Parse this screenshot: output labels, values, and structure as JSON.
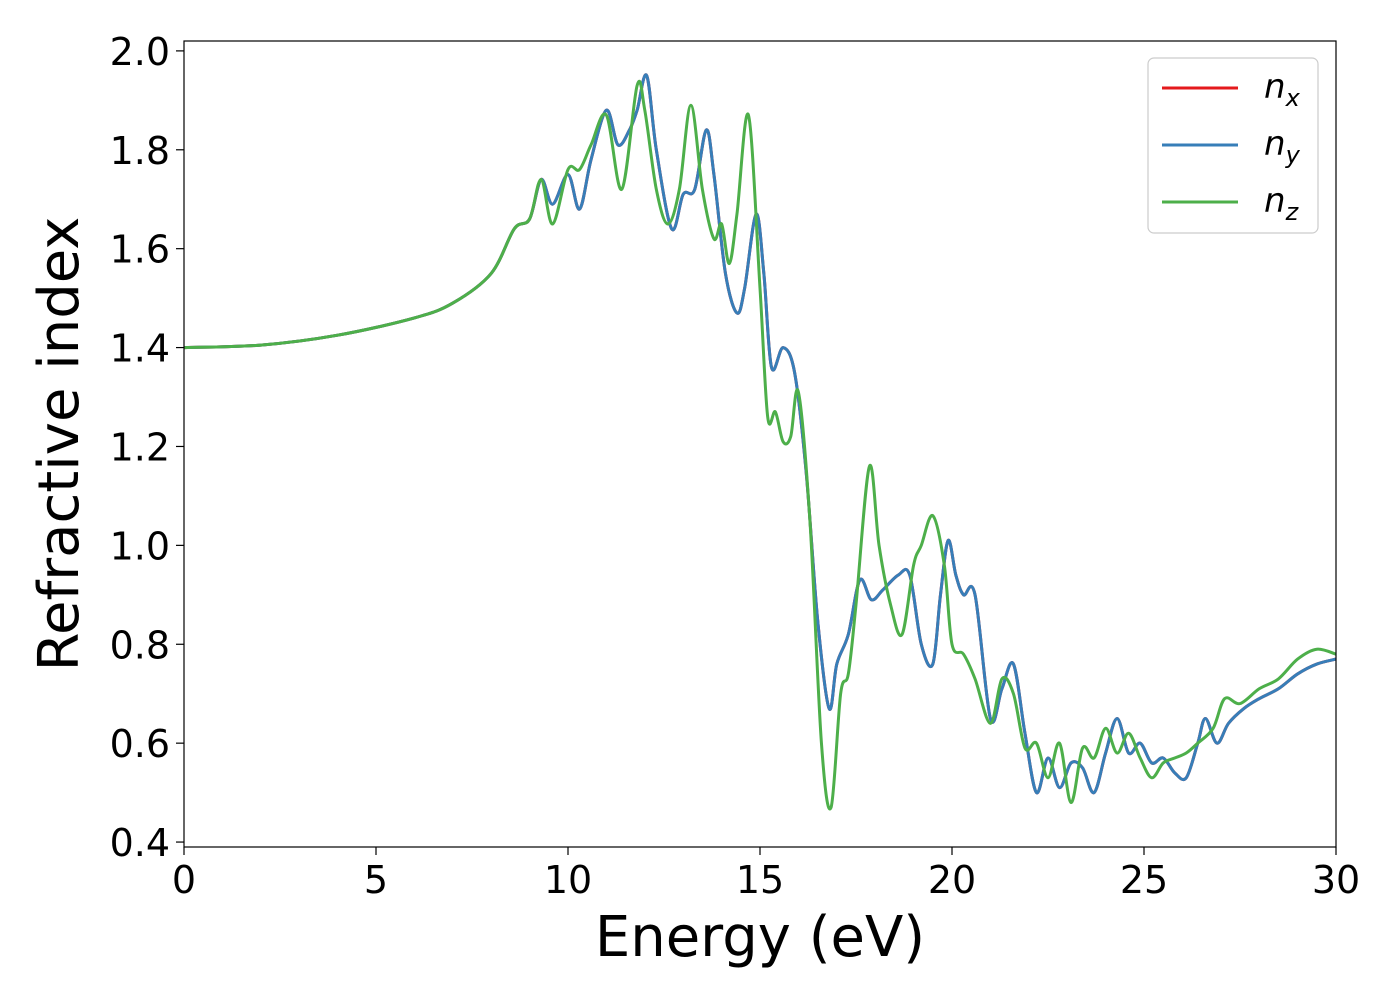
{
  "chart_data": {
    "type": "line",
    "title": "",
    "xlabel": "Energy (eV)",
    "ylabel": "Refractive index",
    "xlim": [
      0,
      30
    ],
    "ylim": [
      0.39,
      2.02
    ],
    "xticks": [
      0,
      5,
      10,
      15,
      20,
      25,
      30
    ],
    "yticks": [
      0.4,
      0.6,
      0.8,
      1.0,
      1.2,
      1.4,
      1.6,
      1.8,
      2.0
    ],
    "xtick_labels": [
      "0",
      "5",
      "10",
      "15",
      "20",
      "25",
      "30"
    ],
    "ytick_labels": [
      "0.4",
      "0.6",
      "0.8",
      "1.0",
      "1.2",
      "1.4",
      "1.6",
      "1.8",
      "2.0"
    ],
    "grid": false,
    "legend_position": "top-right",
    "series": [
      {
        "name": "n_x",
        "legend_base": "n",
        "legend_sub": "x",
        "color": "#e41a1c",
        "x": [
          0,
          2,
          4,
          6,
          7,
          8,
          8.6,
          9,
          9.3,
          9.6,
          10,
          10.3,
          10.6,
          11,
          11.3,
          11.6,
          11.8,
          12.05,
          12.3,
          12.7,
          13,
          13.3,
          13.6,
          13.8,
          14.1,
          14.4,
          14.6,
          14.9,
          15.1,
          15.3,
          15.6,
          15.9,
          16.2,
          16.5,
          16.8,
          17.0,
          17.3,
          17.6,
          17.9,
          18.2,
          18.6,
          18.9,
          19.2,
          19.5,
          19.7,
          19.9,
          20.1,
          20.3,
          20.6,
          21.0,
          21.3,
          21.6,
          21.9,
          22.2,
          22.5,
          22.8,
          23.1,
          23.4,
          23.7,
          24.0,
          24.3,
          24.6,
          24.9,
          25.2,
          25.5,
          25.8,
          26.1,
          26.4,
          26.6,
          26.9,
          27.2,
          27.6,
          28.0,
          28.5,
          29.0,
          29.5,
          30.0
        ],
        "y": [
          1.4,
          1.405,
          1.425,
          1.46,
          1.49,
          1.55,
          1.64,
          1.66,
          1.74,
          1.69,
          1.75,
          1.68,
          1.78,
          1.88,
          1.81,
          1.84,
          1.88,
          1.95,
          1.8,
          1.64,
          1.71,
          1.72,
          1.84,
          1.75,
          1.55,
          1.47,
          1.52,
          1.67,
          1.55,
          1.36,
          1.4,
          1.35,
          1.15,
          0.85,
          0.67,
          0.76,
          0.82,
          0.93,
          0.89,
          0.91,
          0.94,
          0.94,
          0.8,
          0.76,
          0.9,
          1.01,
          0.94,
          0.9,
          0.9,
          0.65,
          0.71,
          0.76,
          0.62,
          0.5,
          0.57,
          0.51,
          0.56,
          0.55,
          0.5,
          0.58,
          0.65,
          0.58,
          0.6,
          0.56,
          0.57,
          0.54,
          0.53,
          0.6,
          0.65,
          0.6,
          0.64,
          0.67,
          0.69,
          0.71,
          0.74,
          0.76,
          0.77
        ]
      },
      {
        "name": "n_y",
        "legend_base": "n",
        "legend_sub": "y",
        "color": "#377eb8",
        "x": [
          0,
          2,
          4,
          6,
          7,
          8,
          8.6,
          9,
          9.3,
          9.6,
          10,
          10.3,
          10.6,
          11,
          11.3,
          11.6,
          11.8,
          12.05,
          12.3,
          12.7,
          13,
          13.3,
          13.6,
          13.8,
          14.1,
          14.4,
          14.6,
          14.9,
          15.1,
          15.3,
          15.6,
          15.9,
          16.2,
          16.5,
          16.8,
          17.0,
          17.3,
          17.6,
          17.9,
          18.2,
          18.6,
          18.9,
          19.2,
          19.5,
          19.7,
          19.9,
          20.1,
          20.3,
          20.6,
          21.0,
          21.3,
          21.6,
          21.9,
          22.2,
          22.5,
          22.8,
          23.1,
          23.4,
          23.7,
          24.0,
          24.3,
          24.6,
          24.9,
          25.2,
          25.5,
          25.8,
          26.1,
          26.4,
          26.6,
          26.9,
          27.2,
          27.6,
          28.0,
          28.5,
          29.0,
          29.5,
          30.0
        ],
        "y": [
          1.4,
          1.405,
          1.425,
          1.46,
          1.49,
          1.55,
          1.64,
          1.66,
          1.74,
          1.69,
          1.75,
          1.68,
          1.78,
          1.88,
          1.81,
          1.84,
          1.88,
          1.95,
          1.8,
          1.64,
          1.71,
          1.72,
          1.84,
          1.75,
          1.55,
          1.47,
          1.52,
          1.67,
          1.55,
          1.36,
          1.4,
          1.35,
          1.15,
          0.85,
          0.67,
          0.76,
          0.82,
          0.93,
          0.89,
          0.91,
          0.94,
          0.94,
          0.8,
          0.76,
          0.9,
          1.01,
          0.94,
          0.9,
          0.9,
          0.65,
          0.71,
          0.76,
          0.62,
          0.5,
          0.57,
          0.51,
          0.56,
          0.55,
          0.5,
          0.58,
          0.65,
          0.58,
          0.6,
          0.56,
          0.57,
          0.54,
          0.53,
          0.6,
          0.65,
          0.6,
          0.64,
          0.67,
          0.69,
          0.71,
          0.74,
          0.76,
          0.77
        ]
      },
      {
        "name": "n_z",
        "legend_base": "n",
        "legend_sub": "z",
        "color": "#4daf4a",
        "x": [
          0,
          2,
          4,
          6,
          7,
          8,
          8.6,
          9,
          9.3,
          9.6,
          10,
          10.3,
          10.6,
          11,
          11.4,
          11.8,
          12.0,
          12.3,
          12.6,
          12.9,
          13.2,
          13.5,
          13.8,
          14.0,
          14.2,
          14.4,
          14.7,
          15.0,
          15.2,
          15.4,
          15.6,
          15.8,
          16.0,
          16.3,
          16.6,
          16.85,
          17.1,
          17.3,
          17.5,
          17.85,
          18.1,
          18.4,
          18.7,
          19.0,
          19.2,
          19.5,
          19.8,
          20.0,
          20.3,
          20.6,
          21.0,
          21.3,
          21.6,
          21.9,
          22.2,
          22.5,
          22.8,
          23.1,
          23.4,
          23.7,
          24.0,
          24.3,
          24.6,
          24.9,
          25.2,
          25.5,
          25.8,
          26.1,
          26.4,
          26.8,
          27.1,
          27.5,
          28.0,
          28.5,
          29.0,
          29.5,
          30.0
        ],
        "y": [
          1.4,
          1.405,
          1.425,
          1.46,
          1.49,
          1.55,
          1.64,
          1.66,
          1.74,
          1.65,
          1.76,
          1.76,
          1.81,
          1.87,
          1.72,
          1.93,
          1.88,
          1.72,
          1.65,
          1.72,
          1.89,
          1.72,
          1.62,
          1.65,
          1.57,
          1.67,
          1.87,
          1.52,
          1.26,
          1.27,
          1.21,
          1.22,
          1.31,
          1.05,
          0.6,
          0.47,
          0.7,
          0.74,
          0.88,
          1.16,
          1.0,
          0.88,
          0.82,
          0.96,
          1.0,
          1.06,
          0.96,
          0.8,
          0.78,
          0.73,
          0.64,
          0.73,
          0.7,
          0.59,
          0.6,
          0.53,
          0.6,
          0.48,
          0.59,
          0.57,
          0.63,
          0.58,
          0.62,
          0.57,
          0.53,
          0.56,
          0.57,
          0.58,
          0.6,
          0.63,
          0.69,
          0.68,
          0.71,
          0.73,
          0.77,
          0.79,
          0.78
        ]
      }
    ]
  }
}
